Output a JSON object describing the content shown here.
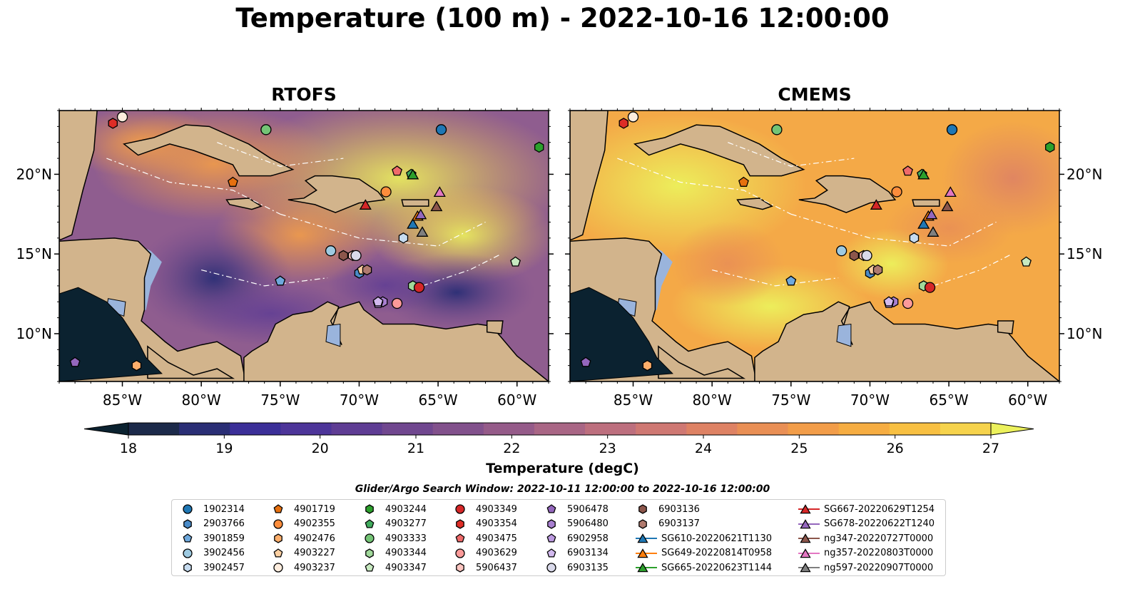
{
  "figure": {
    "title": "Temperature (100 m) - 2022-10-16 12:00:00",
    "colorbar_label": "Temperature (degC)",
    "legend_title": "Glider/Argo Search Window: 2022-10-11 12:00:00 to 2022-10-16 12:00:00"
  },
  "chart_data": [
    {
      "type": "heatmap",
      "title": "RTOFS",
      "xlim": [
        -89,
        -58
      ],
      "ylim": [
        7,
        24
      ],
      "xticks": [
        "85°W",
        "80°W",
        "75°W",
        "70°W",
        "65°W",
        "60°W"
      ],
      "yticks": [
        "10°N",
        "15°N",
        "20°N"
      ],
      "field": "ocean temperature at 100 m, mostly 21-25 degC, cooler (19-21) in the SW Caribbean and along Venezuela, warm (25-27) in the north/east"
    },
    {
      "type": "heatmap",
      "title": "CMEMS",
      "xlim": [
        -89,
        -58
      ],
      "ylim": [
        7,
        24
      ],
      "xticks": [
        "85°W",
        "80°W",
        "75°W",
        "70°W",
        "65°W",
        "60°W"
      ],
      "yticks": [
        "10°N",
        "15°N",
        "20°N"
      ],
      "field": "ocean temperature at 100 m, mostly 25-27 degC, with 23-24 degC patches in the central Caribbean"
    }
  ],
  "colorbar": {
    "min": 18,
    "max": 27,
    "step": 0.5,
    "ticks": [
      "18",
      "19",
      "20",
      "21",
      "22",
      "23",
      "24",
      "25",
      "26",
      "27"
    ],
    "colors": [
      "#0b2230",
      "#1c2a4a",
      "#2a2e75",
      "#3b2f98",
      "#4d3599",
      "#5f3d94",
      "#70478f",
      "#82518c",
      "#955b89",
      "#a96685",
      "#bd6f7e",
      "#cf7873",
      "#de8264",
      "#e98f55",
      "#f29d49",
      "#f6ad42",
      "#f8c042",
      "#f6d34c",
      "#ecf15c"
    ]
  },
  "markers": [
    {
      "id": "1902314",
      "shape": "circle",
      "color": "#1f77b4",
      "lon": -64.8,
      "lat": 22.8
    },
    {
      "id": "2903766",
      "shape": "hexagon",
      "color": "#4a8bc8",
      "lon": -70.0,
      "lat": 13.8
    },
    {
      "id": "3901859",
      "shape": "pentagon",
      "color": "#6ea8dc",
      "lon": -75.0,
      "lat": 13.3
    },
    {
      "id": "3902456",
      "shape": "circle",
      "color": "#9ecae1",
      "lon": -71.8,
      "lat": 15.2
    },
    {
      "id": "3902457",
      "shape": "hexagon",
      "color": "#c6dbef",
      "lon": -67.2,
      "lat": 16.0
    },
    {
      "id": "4901719",
      "shape": "pentagon",
      "color": "#e6700f",
      "lon": -78.0,
      "lat": 19.5
    },
    {
      "id": "4902355",
      "shape": "circle",
      "color": "#fd8d3c",
      "lon": -68.3,
      "lat": 18.9
    },
    {
      "id": "4902476",
      "shape": "hexagon",
      "color": "#fdae6b",
      "lon": -84.1,
      "lat": 8.0
    },
    {
      "id": "4903227",
      "shape": "pentagon",
      "color": "#fdd0a2",
      "lon": -69.8,
      "lat": 14.0
    },
    {
      "id": "4903237",
      "shape": "circle",
      "color": "#feedde",
      "lon": -85.0,
      "lat": 23.6
    },
    {
      "id": "4903244",
      "shape": "hexagon",
      "color": "#2ca02c",
      "lon": -58.6,
      "lat": 21.7
    },
    {
      "id": "4903277",
      "shape": "pentagon",
      "color": "#41ab5d",
      "lon": -66.7,
      "lat": 20.0
    },
    {
      "id": "4903333",
      "shape": "circle",
      "color": "#74c476",
      "lon": -75.9,
      "lat": 22.8
    },
    {
      "id": "4903344",
      "shape": "hexagon",
      "color": "#a1d99b",
      "lon": -66.6,
      "lat": 13.0
    },
    {
      "id": "4903347",
      "shape": "pentagon",
      "color": "#c7e9c0",
      "lon": -60.1,
      "lat": 14.5
    },
    {
      "id": "4903349",
      "shape": "circle",
      "color": "#d62728",
      "lon": -66.2,
      "lat": 12.9
    },
    {
      "id": "4903354",
      "shape": "hexagon",
      "color": "#de2d26",
      "lon": -85.6,
      "lat": 23.2
    },
    {
      "id": "4903475",
      "shape": "pentagon",
      "color": "#ef6a6a",
      "lon": -67.6,
      "lat": 20.2
    },
    {
      "id": "4903629",
      "shape": "circle",
      "color": "#fb9a99",
      "lon": -67.6,
      "lat": 11.9
    },
    {
      "id": "5906437",
      "shape": "hexagon",
      "color": "#fcc5c0",
      "lon": -70.4,
      "lat": 14.9
    },
    {
      "id": "5906478",
      "shape": "pentagon",
      "color": "#9467bd",
      "lon": -88.0,
      "lat": 8.2
    },
    {
      "id": "5906480",
      "shape": "hexagon",
      "color": "#a87fd0",
      "lon": -68.5,
      "lat": 12.0
    },
    {
      "id": "6902958",
      "shape": "pentagon",
      "color": "#bc9ae0",
      "lon": -68.8,
      "lat": 11.9
    },
    {
      "id": "6903134",
      "shape": "pentagon",
      "color": "#d2b9ee",
      "lon": -68.8,
      "lat": 12.0
    },
    {
      "id": "6903135",
      "shape": "circle",
      "color": "#dadaeb",
      "lon": -70.2,
      "lat": 14.9
    },
    {
      "id": "6903136",
      "shape": "hexagon",
      "color": "#8c564b",
      "lon": -71.0,
      "lat": 14.9
    },
    {
      "id": "6903137",
      "shape": "hexagon",
      "color": "#b07a6e",
      "lon": -69.5,
      "lat": 14.0
    },
    {
      "id": "SG610-20220621T1130",
      "shape": "triangle",
      "color": "#1f77b4",
      "line": true,
      "lon": -66.6,
      "lat": 16.9
    },
    {
      "id": "SG649-20220814T0958",
      "shape": "triangle",
      "color": "#ff7f0e",
      "line": true,
      "lon": -66.3,
      "lat": 17.4
    },
    {
      "id": "SG665-20220623T1144",
      "shape": "triangle",
      "color": "#2ca02c",
      "line": true,
      "lon": -66.6,
      "lat": 20.0
    },
    {
      "id": "SG667-20220629T1254",
      "shape": "triangle",
      "color": "#d62728",
      "line": true,
      "lon": -69.6,
      "lat": 18.1
    },
    {
      "id": "SG678-20220622T1240",
      "shape": "triangle",
      "color": "#9467bd",
      "line": true,
      "lon": -66.1,
      "lat": 17.5
    },
    {
      "id": "ng347-20220727T0000",
      "shape": "triangle",
      "color": "#8c564b",
      "line": true,
      "lon": -65.1,
      "lat": 18.0
    },
    {
      "id": "ng357-20220803T0000",
      "shape": "triangle",
      "color": "#e377c2",
      "line": true,
      "lon": -64.9,
      "lat": 18.9
    },
    {
      "id": "ng597-20220907T0000",
      "shape": "triangle",
      "color": "#7f7f7f",
      "line": true,
      "lon": -66.0,
      "lat": 16.4
    }
  ]
}
